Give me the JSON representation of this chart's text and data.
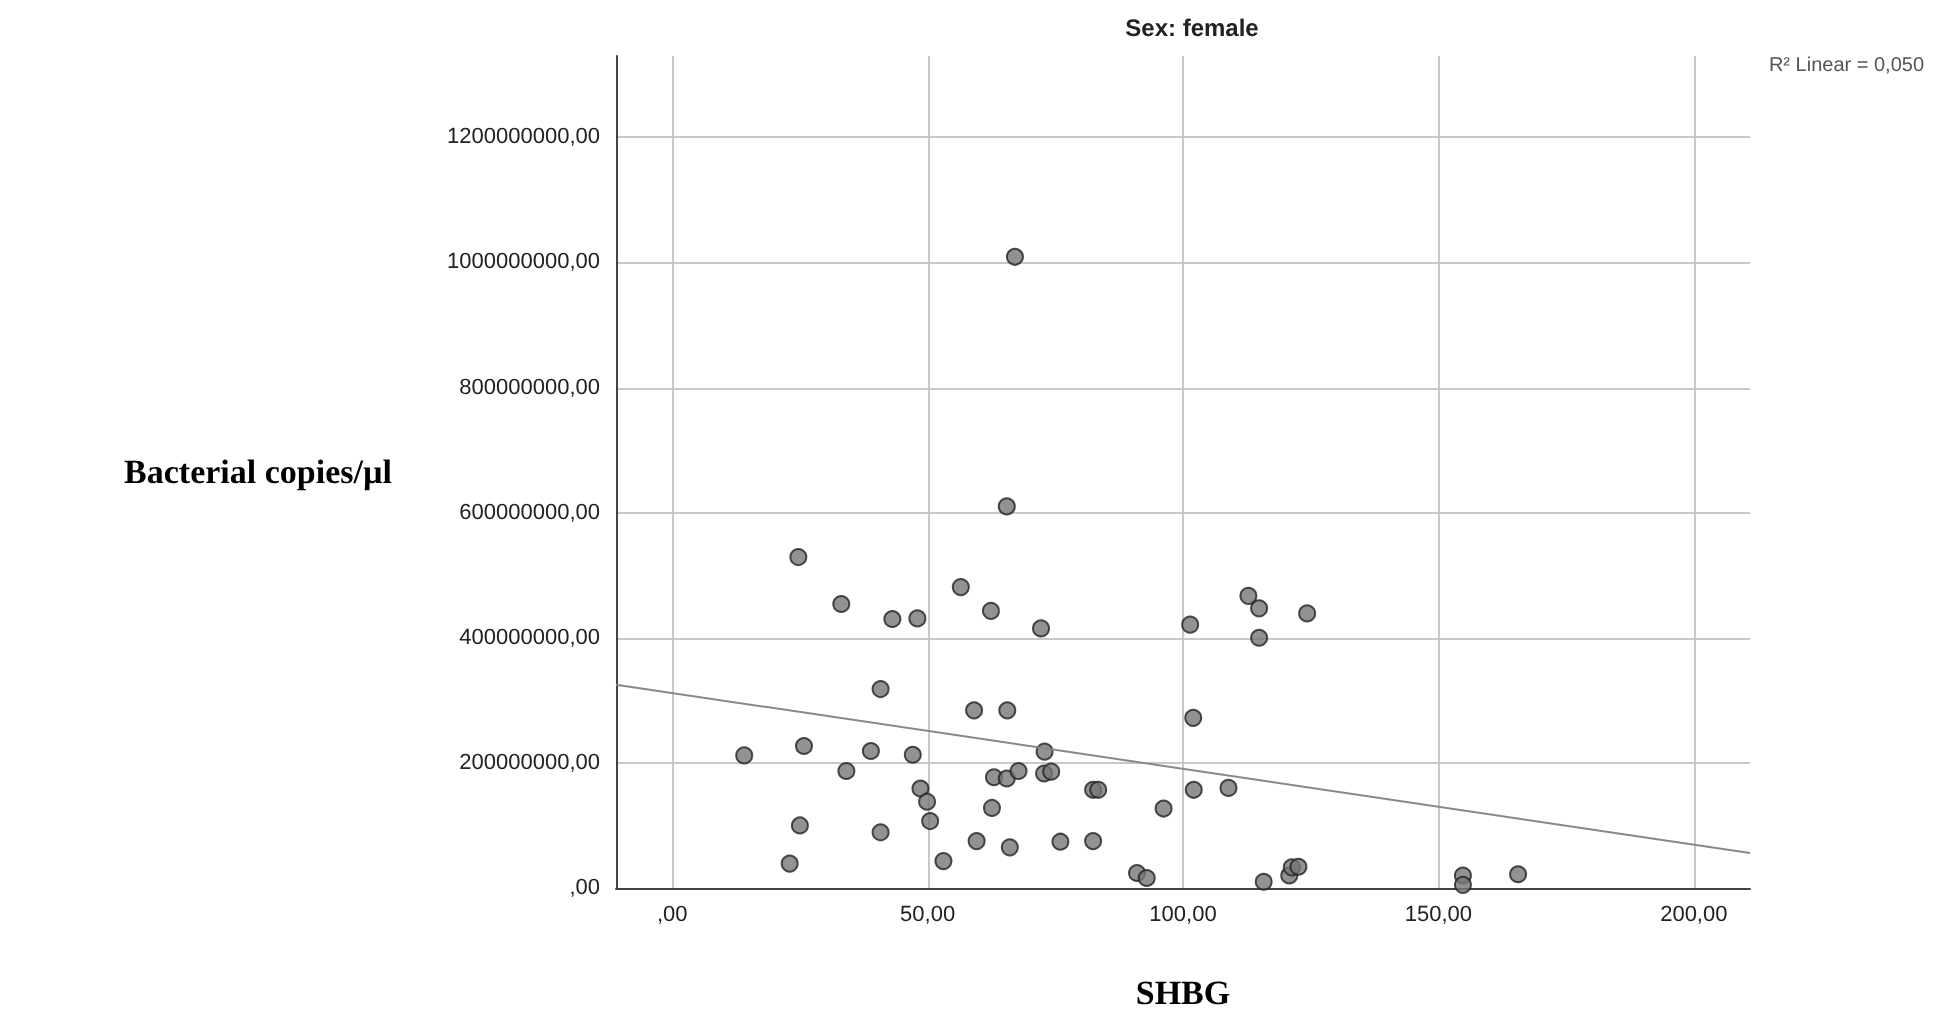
{
  "chart_data": {
    "type": "scatter",
    "title": "Sex: female",
    "xlabel": "SHBG",
    "ylabel": "Bacterial copies/µl",
    "annotations": [
      "R² Linear = 0,050"
    ],
    "xlim": [
      -11,
      211
    ],
    "xticks": [
      {
        "value": 0,
        "label": ",00"
      },
      {
        "value": 50,
        "label": "50,00"
      },
      {
        "value": 100,
        "label": "100,00"
      },
      {
        "value": 150,
        "label": "150,00"
      },
      {
        "value": 200,
        "label": "200,00"
      }
    ],
    "ylim": [
      0,
      1330000000
    ],
    "yticks": [
      {
        "value": 0,
        "label": ",00"
      },
      {
        "value": 200000000,
        "label": "200000000,00"
      },
      {
        "value": 400000000,
        "label": "400000000,00"
      },
      {
        "value": 600000000,
        "label": "600000000,00"
      },
      {
        "value": 800000000,
        "label": "800000000,00"
      },
      {
        "value": 1000000000,
        "label": "1000000000,00"
      },
      {
        "value": 1200000000,
        "label": "1200000000,00"
      }
    ],
    "grid": true,
    "series": [
      {
        "marker": "circle",
        "color": "#777777",
        "x": [
          67.1,
          65.5,
          24.7,
          56.5,
          33.1,
          62.4,
          43.1,
          48.0,
          72.2,
          101.4,
          40.8,
          59.1,
          65.6,
          102.0,
          14.1,
          25.8,
          38.9,
          47.1,
          72.9,
          34.1,
          48.6,
          49.9,
          63.0,
          65.5,
          67.8,
          72.8,
          74.2,
          82.4,
          83.4,
          102.1,
          25.0,
          40.8,
          50.5,
          62.6,
          96.2,
          59.6,
          66.1,
          76.0,
          82.4,
          23.0,
          53.1,
          91.0,
          92.9,
          112.8,
          114.9,
          124.3,
          114.9,
          108.9,
          115.8,
          120.8,
          121.3,
          122.6,
          154.8,
          154.8,
          165.6
        ],
        "values": [
          1009000000,
          610000000,
          529000000,
          481000000,
          454000000,
          443000000,
          430000000,
          431000000,
          415000000,
          421000000,
          318000000,
          284000000,
          284000000,
          272000000,
          212000000,
          227000000,
          219000000,
          213000000,
          218000000,
          187000000,
          159000000,
          138000000,
          177000000,
          175000000,
          187000000,
          183000000,
          186000000,
          157000000,
          157000000,
          157000000,
          100000000,
          89000000,
          107000000,
          128000000,
          127000000,
          75000000,
          65000000,
          74000000,
          75000000,
          39000000,
          43000000,
          24000000,
          16000000,
          467000000,
          447000000,
          439000000,
          400000000,
          160000000,
          10000000,
          20000000,
          33000000,
          34000000,
          20000000,
          5000000,
          22000000
        ]
      },
      {
        "type": "line",
        "marker": "none",
        "color": "#888888",
        "x": [
          -11,
          211
        ],
        "values": [
          325000000,
          56000000
        ]
      }
    ]
  }
}
